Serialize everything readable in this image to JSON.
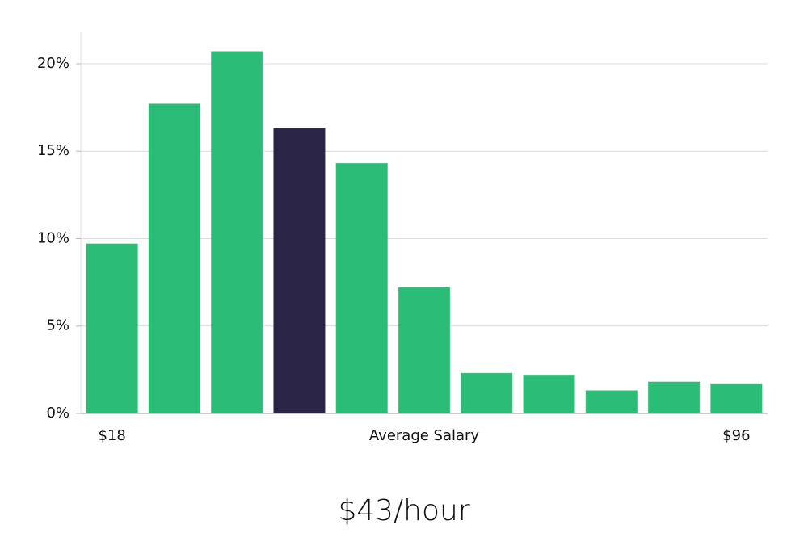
{
  "chart_data": {
    "type": "bar",
    "title": "$43/hour",
    "xlabel": "Average Salary",
    "categories": [
      "$18",
      null,
      null,
      null,
      null,
      null,
      null,
      null,
      null,
      null,
      "$96"
    ],
    "values": [
      9.7,
      17.7,
      20.7,
      16.3,
      14.3,
      7.2,
      2.3,
      2.2,
      1.3,
      1.8,
      1.7
    ],
    "colors": [
      "#2bbd77",
      "#2bbd77",
      "#2bbd77",
      "#2a2546",
      "#2bbd77",
      "#2bbd77",
      "#2bbd77",
      "#2bbd77",
      "#2bbd77",
      "#2bbd77",
      "#2bbd77"
    ],
    "ylim": [
      0,
      21.8
    ],
    "yticks": [
      {
        "value": 0,
        "label": "0%"
      },
      {
        "value": 5,
        "label": "5%"
      },
      {
        "value": 10,
        "label": "10%"
      },
      {
        "value": 15,
        "label": "15%"
      },
      {
        "value": 20,
        "label": "20%"
      }
    ],
    "grid": true
  }
}
